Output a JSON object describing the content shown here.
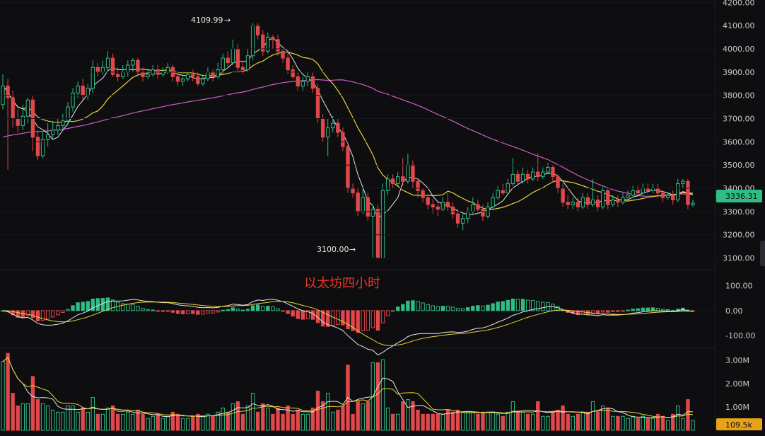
{
  "chart_data": {
    "type": "candlestick",
    "title": "以太坊四小时",
    "colors": {
      "background": "#0e0e10",
      "up": "#2ebd85",
      "down": "#e0484b",
      "ma_fast": "#e6e6e6",
      "ma_mid": "#e8d33a",
      "ma_slow": "#d05cc7",
      "price_tag": "#2ebd85",
      "volume_tag": "#e8a21a"
    },
    "price_axis": {
      "range": [
        3050,
        4210
      ],
      "ticks": [
        "3100.00",
        "3200.00",
        "3300.00",
        "3400.00",
        "3500.00",
        "3600.00",
        "3700.00",
        "3800.00",
        "3900.00",
        "4000.00",
        "4100.00",
        "4200.00"
      ]
    },
    "current_price": "3336.31",
    "high_annotation": "4109.99",
    "low_annotation": "3100.00",
    "candles": [
      [
        3760,
        3840,
        3890,
        3740
      ],
      [
        3840,
        3790,
        3870,
        3480
      ],
      [
        3790,
        3700,
        3820,
        3660
      ],
      [
        3700,
        3670,
        3740,
        3640
      ],
      [
        3670,
        3710,
        3760,
        3650
      ],
      [
        3710,
        3780,
        3790,
        3680
      ],
      [
        3780,
        3620,
        3800,
        3560
      ],
      [
        3620,
        3540,
        3650,
        3520
      ],
      [
        3540,
        3610,
        3640,
        3530
      ],
      [
        3610,
        3630,
        3680,
        3580
      ],
      [
        3630,
        3650,
        3690,
        3610
      ],
      [
        3650,
        3670,
        3700,
        3630
      ],
      [
        3670,
        3690,
        3720,
        3650
      ],
      [
        3690,
        3750,
        3770,
        3670
      ],
      [
        3750,
        3810,
        3830,
        3730
      ],
      [
        3810,
        3840,
        3860,
        3790
      ],
      [
        3840,
        3800,
        3870,
        3780
      ],
      [
        3800,
        3830,
        3850,
        3780
      ],
      [
        3830,
        3920,
        3950,
        3810
      ],
      [
        3920,
        3900,
        3940,
        3880
      ],
      [
        3900,
        3920,
        3950,
        3890
      ],
      [
        3920,
        3960,
        3990,
        3900
      ],
      [
        3960,
        3890,
        3980,
        3880
      ],
      [
        3890,
        3880,
        3920,
        3860
      ],
      [
        3880,
        3900,
        3930,
        3870
      ],
      [
        3900,
        3930,
        3950,
        3880
      ],
      [
        3930,
        3950,
        3960,
        3900
      ],
      [
        3950,
        3900,
        3960,
        3880
      ],
      [
        3900,
        3880,
        3920,
        3860
      ],
      [
        3880,
        3890,
        3910,
        3870
      ],
      [
        3890,
        3910,
        3930,
        3880
      ],
      [
        3910,
        3890,
        3930,
        3870
      ],
      [
        3890,
        3900,
        3920,
        3880
      ],
      [
        3900,
        3920,
        3940,
        3890
      ],
      [
        3920,
        3880,
        3930,
        3860
      ],
      [
        3880,
        3860,
        3900,
        3840
      ],
      [
        3860,
        3870,
        3880,
        3840
      ],
      [
        3870,
        3890,
        3900,
        3860
      ],
      [
        3890,
        3880,
        3910,
        3860
      ],
      [
        3880,
        3850,
        3900,
        3840
      ],
      [
        3850,
        3870,
        3890,
        3840
      ],
      [
        3870,
        3900,
        3920,
        3860
      ],
      [
        3900,
        3880,
        3910,
        3860
      ],
      [
        3880,
        3910,
        3940,
        3870
      ],
      [
        3910,
        3960,
        3980,
        3890
      ],
      [
        3960,
        3940,
        3990,
        3920
      ],
      [
        3940,
        4000,
        4040,
        3930
      ],
      [
        4000,
        3920,
        4020,
        3900
      ],
      [
        3920,
        3910,
        3950,
        3890
      ],
      [
        3910,
        3970,
        4000,
        3900
      ],
      [
        3970,
        4100,
        4110,
        3950
      ],
      [
        4100,
        4060,
        4110,
        4040
      ],
      [
        4060,
        3990,
        4080,
        3970
      ],
      [
        3990,
        4050,
        4070,
        3980
      ],
      [
        4050,
        4040,
        4060,
        4000
      ],
      [
        4040,
        3990,
        4060,
        3970
      ],
      [
        3990,
        3960,
        4000,
        3940
      ],
      [
        3960,
        3910,
        3990,
        3890
      ],
      [
        3910,
        3880,
        3930,
        3870
      ],
      [
        3880,
        3840,
        3900,
        3820
      ],
      [
        3840,
        3860,
        3880,
        3820
      ],
      [
        3860,
        3880,
        3900,
        3840
      ],
      [
        3880,
        3830,
        3900,
        3810
      ],
      [
        3830,
        3700,
        3850,
        3680
      ],
      [
        3700,
        3620,
        3720,
        3600
      ],
      [
        3620,
        3660,
        3700,
        3540
      ],
      [
        3660,
        3680,
        3710,
        3640
      ],
      [
        3680,
        3640,
        3700,
        3620
      ],
      [
        3640,
        3580,
        3660,
        3560
      ],
      [
        3580,
        3400,
        3600,
        3380
      ],
      [
        3400,
        3380,
        3420,
        3360
      ],
      [
        3380,
        3300,
        3400,
        3280
      ],
      [
        3300,
        3360,
        3400,
        3290
      ],
      [
        3360,
        3280,
        3380,
        3260
      ],
      [
        3280,
        3310,
        3330,
        3100
      ],
      [
        3310,
        3100,
        3330,
        3100
      ],
      [
        3100,
        3390,
        3420,
        3100
      ],
      [
        3390,
        3440,
        3460,
        3370
      ],
      [
        3440,
        3420,
        3460,
        3400
      ],
      [
        3420,
        3450,
        3470,
        3410
      ],
      [
        3450,
        3430,
        3530,
        3410
      ],
      [
        3430,
        3500,
        3550,
        3420
      ],
      [
        3500,
        3430,
        3520,
        3400
      ],
      [
        3430,
        3390,
        3440,
        3360
      ],
      [
        3390,
        3360,
        3400,
        3340
      ],
      [
        3360,
        3330,
        3370,
        3310
      ],
      [
        3330,
        3320,
        3350,
        3290
      ],
      [
        3320,
        3310,
        3340,
        3280
      ],
      [
        3310,
        3340,
        3360,
        3300
      ],
      [
        3340,
        3320,
        3380,
        3300
      ],
      [
        3320,
        3290,
        3340,
        3270
      ],
      [
        3290,
        3250,
        3310,
        3230
      ],
      [
        3250,
        3270,
        3290,
        3220
      ],
      [
        3270,
        3300,
        3320,
        3250
      ],
      [
        3300,
        3330,
        3360,
        3290
      ],
      [
        3330,
        3310,
        3350,
        3290
      ],
      [
        3310,
        3280,
        3330,
        3260
      ],
      [
        3280,
        3320,
        3340,
        3270
      ],
      [
        3320,
        3360,
        3380,
        3310
      ],
      [
        3360,
        3390,
        3410,
        3350
      ],
      [
        3390,
        3380,
        3420,
        3370
      ],
      [
        3380,
        3420,
        3440,
        3370
      ],
      [
        3420,
        3460,
        3530,
        3410
      ],
      [
        3460,
        3430,
        3480,
        3410
      ],
      [
        3430,
        3460,
        3490,
        3420
      ],
      [
        3460,
        3440,
        3480,
        3420
      ],
      [
        3440,
        3470,
        3490,
        3430
      ],
      [
        3470,
        3450,
        3550,
        3430
      ],
      [
        3450,
        3470,
        3490,
        3440
      ],
      [
        3470,
        3490,
        3510,
        3460
      ],
      [
        3490,
        3450,
        3500,
        3430
      ],
      [
        3450,
        3400,
        3460,
        3380
      ],
      [
        3400,
        3340,
        3420,
        3320
      ],
      [
        3340,
        3330,
        3370,
        3310
      ],
      [
        3330,
        3340,
        3360,
        3310
      ],
      [
        3340,
        3320,
        3360,
        3300
      ],
      [
        3320,
        3360,
        3380,
        3310
      ],
      [
        3360,
        3330,
        3380,
        3310
      ],
      [
        3330,
        3350,
        3440,
        3320
      ],
      [
        3350,
        3320,
        3370,
        3300
      ],
      [
        3320,
        3390,
        3410,
        3310
      ],
      [
        3390,
        3330,
        3400,
        3310
      ],
      [
        3330,
        3350,
        3370,
        3320
      ],
      [
        3350,
        3340,
        3370,
        3320
      ],
      [
        3340,
        3360,
        3380,
        3330
      ],
      [
        3360,
        3370,
        3390,
        3350
      ],
      [
        3370,
        3390,
        3410,
        3360
      ],
      [
        3390,
        3380,
        3410,
        3370
      ],
      [
        3380,
        3400,
        3420,
        3370
      ],
      [
        3400,
        3390,
        3420,
        3380
      ],
      [
        3390,
        3400,
        3420,
        3380
      ],
      [
        3400,
        3380,
        3420,
        3360
      ],
      [
        3380,
        3360,
        3390,
        3340
      ],
      [
        3360,
        3370,
        3380,
        3350
      ],
      [
        3370,
        3350,
        3390,
        3330
      ],
      [
        3350,
        3420,
        3440,
        3340
      ],
      [
        3420,
        3430,
        3440,
        3400
      ],
      [
        3430,
        3330,
        3440,
        3310
      ],
      [
        3330,
        3336.31,
        3350,
        3320
      ]
    ],
    "macd_axis": {
      "range": [
        -145,
        150
      ],
      "ticks": [
        "100.00",
        "0.00",
        "-100.00"
      ]
    },
    "volume_axis": {
      "range": [
        0,
        3400000
      ],
      "ticks": [
        "1.00M",
        "2.00M",
        "3.00M"
      ]
    },
    "volume_tag": "109.5k"
  }
}
